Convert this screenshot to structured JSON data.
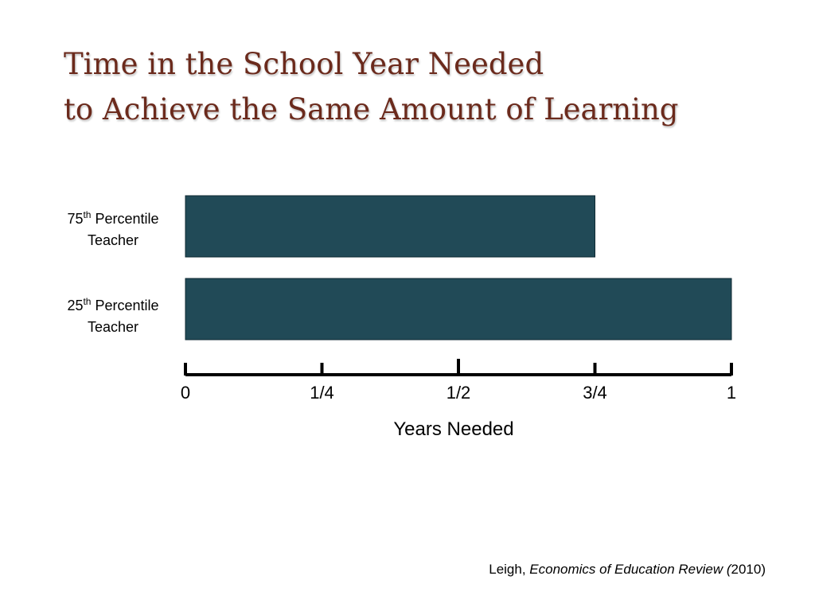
{
  "title": {
    "line1": "Time in the School Year Needed",
    "line2": "to Achieve the Same Amount of Learning"
  },
  "categories": [
    {
      "num": "75",
      "sup": "th",
      "word": "Percentile",
      "line2": "Teacher"
    },
    {
      "num": "25",
      "sup": "th",
      "word": "Percentile",
      "line2": "Teacher"
    }
  ],
  "chart_data": {
    "type": "bar",
    "orientation": "horizontal",
    "categories": [
      "75th Percentile Teacher",
      "25th Percentile Teacher"
    ],
    "values": [
      0.75,
      1.0
    ],
    "xlabel": "Years Needed",
    "ylabel": "",
    "xlim": [
      0,
      1
    ],
    "ticks": [
      {
        "value": 0,
        "label": "0"
      },
      {
        "value": 0.25,
        "label": "1/4"
      },
      {
        "value": 0.5,
        "label": "1/2"
      },
      {
        "value": 0.75,
        "label": "3/4"
      },
      {
        "value": 1,
        "label": "1"
      }
    ],
    "bar_color": "#214a57",
    "grid": false,
    "legend": "none"
  },
  "source": {
    "author": "Leigh, ",
    "journal": "Economics of Education Review (",
    "year": "2010)"
  },
  "colors": {
    "title": "#6b2a1c",
    "bar": "#214a57"
  }
}
